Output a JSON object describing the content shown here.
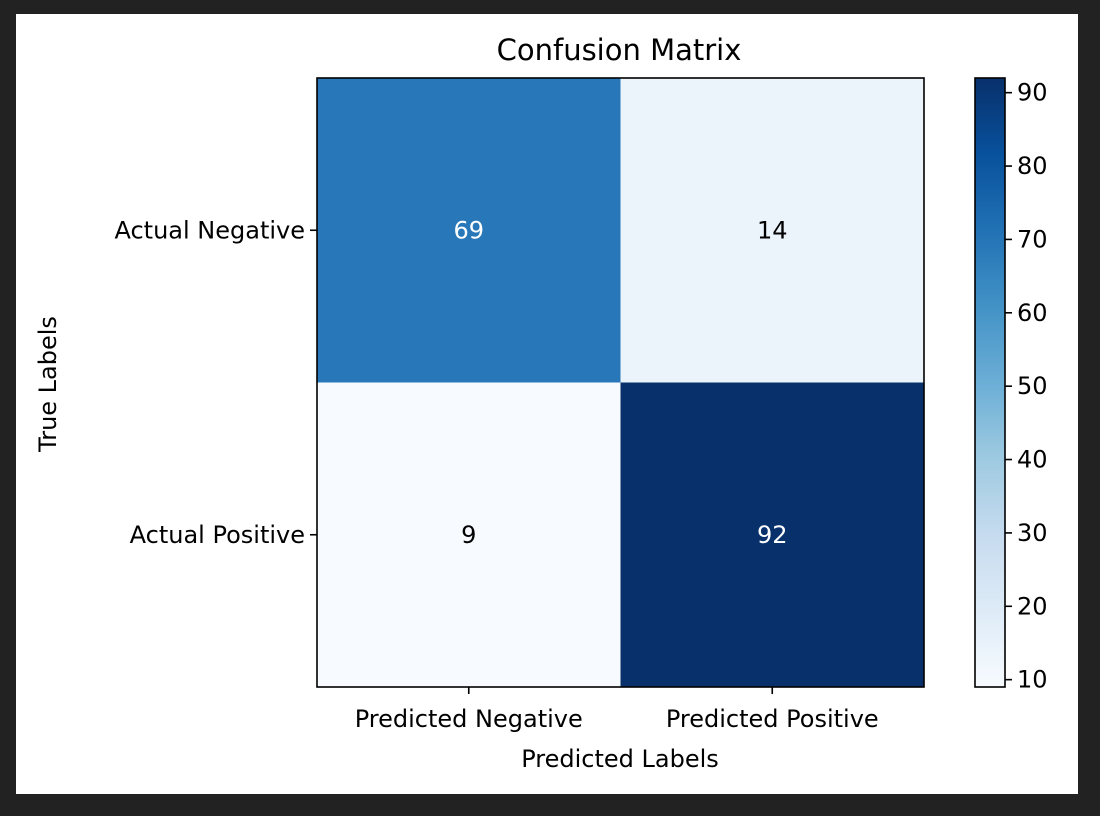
{
  "chart_data": {
    "type": "heatmap",
    "title": "Confusion Matrix",
    "xlabel": "Predicted Labels",
    "ylabel": "True Labels",
    "x_categories": [
      "Predicted Negative",
      "Predicted Positive"
    ],
    "y_categories": [
      "Actual Negative",
      "Actual Positive"
    ],
    "values": [
      [
        69,
        14
      ],
      [
        9,
        92
      ]
    ],
    "colormap": "Blues",
    "colorbar": {
      "range": [
        9,
        92
      ],
      "ticks": [
        "10",
        "20",
        "30",
        "40",
        "50",
        "60",
        "70",
        "80",
        "90"
      ]
    },
    "annotation_colors": {
      "dark_cell": "#ffffff",
      "light_cell": "#000000"
    },
    "grid": false
  }
}
